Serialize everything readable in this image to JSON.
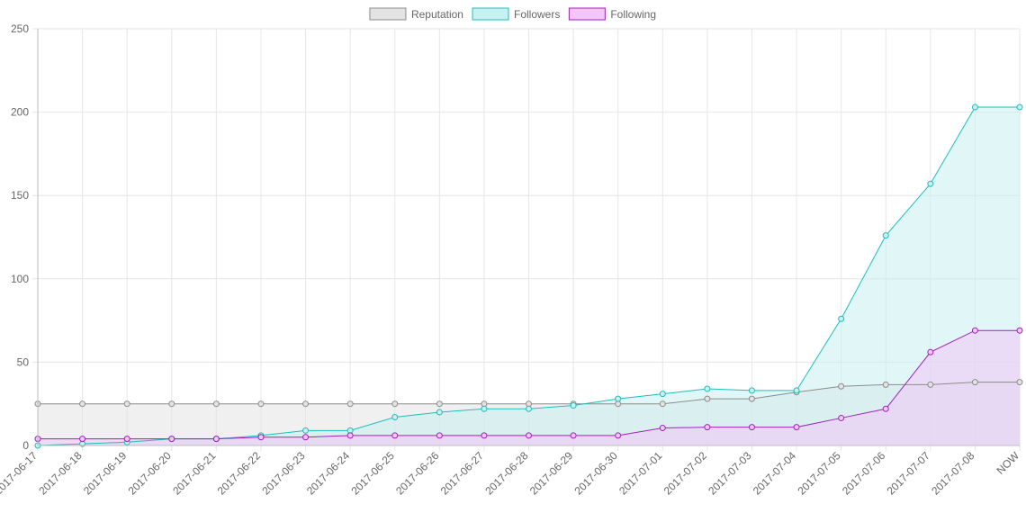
{
  "chart_data": {
    "type": "area",
    "categories": [
      "2017-06-17",
      "2017-06-18",
      "2017-06-19",
      "2017-06-20",
      "2017-06-21",
      "2017-06-22",
      "2017-06-23",
      "2017-06-24",
      "2017-06-25",
      "2017-06-26",
      "2017-06-27",
      "2017-06-28",
      "2017-06-29",
      "2017-06-30",
      "2017-07-01",
      "2017-07-02",
      "2017-07-03",
      "2017-07-04",
      "2017-07-05",
      "2017-07-06",
      "2017-07-07",
      "2017-07-08",
      "NOW"
    ],
    "ylim": [
      0,
      250
    ],
    "yticks": [
      0,
      50,
      100,
      150,
      200,
      250
    ],
    "grid": true,
    "legend": "top-center",
    "series": [
      {
        "name": "Reputation",
        "color": "#8c8c8c",
        "fill": "#e3e3e3",
        "values": [
          25,
          25,
          25,
          25,
          25,
          25,
          25,
          25,
          25,
          25,
          25,
          25,
          25,
          25,
          25,
          28,
          28,
          32,
          35.5,
          36.5,
          36.5,
          38,
          38
        ]
      },
      {
        "name": "Followers",
        "color": "#1fbdbd",
        "fill": "#c9f0f0",
        "values": [
          0,
          1,
          2,
          4,
          4,
          6,
          9,
          9,
          17,
          20,
          22,
          22,
          24,
          28,
          31,
          34,
          33,
          33,
          76,
          126,
          157,
          203,
          203
        ]
      },
      {
        "name": "Following",
        "color": "#a020c0",
        "fill": "#f3c6f5",
        "values": [
          4,
          4,
          4,
          4,
          4,
          5,
          5,
          6,
          6,
          6,
          6,
          6,
          6,
          6,
          10.5,
          11,
          11,
          11,
          16.5,
          22,
          56,
          69,
          69
        ]
      }
    ]
  }
}
